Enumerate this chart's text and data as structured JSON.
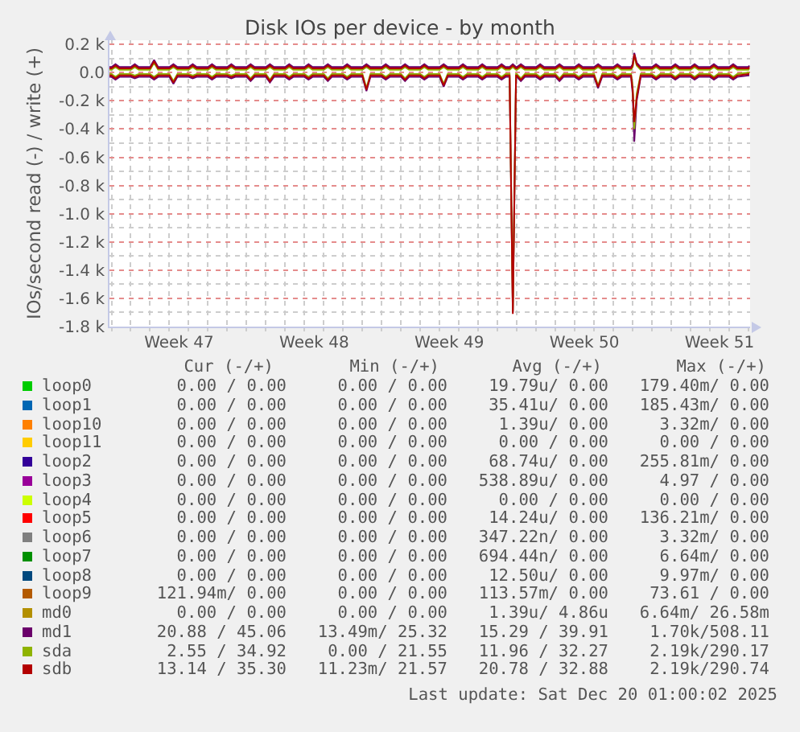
{
  "chart_data": {
    "type": "line",
    "title": "Disk IOs per device - by month",
    "ylabel": "IOs/second read (-) / write (+)",
    "xlim": [
      "2025-11-16T21:30",
      "2025-12-20T02:00"
    ],
    "xticks": [
      {
        "value": "2025-11-17",
        "label": null
      },
      {
        "value": "2025-11-20T12:00",
        "label": "Week 47"
      },
      {
        "value": "2025-11-24",
        "label": null
      },
      {
        "value": "2025-11-27T12:00",
        "label": "Week 48"
      },
      {
        "value": "2025-12-01",
        "label": null
      },
      {
        "value": "2025-12-04T12:00",
        "label": "Week 49"
      },
      {
        "value": "2025-12-08",
        "label": null
      },
      {
        "value": "2025-12-11T12:00",
        "label": "Week 50"
      },
      {
        "value": "2025-12-15",
        "label": null
      },
      {
        "value": "2025-12-18T12:00",
        "label": "Week 51"
      }
    ],
    "ylim": [
      -1800,
      230
    ],
    "yticks": [
      {
        "value": -1800,
        "label": "-1.8 k"
      },
      {
        "value": -1600,
        "label": "-1.6 k"
      },
      {
        "value": -1400,
        "label": "-1.4 k"
      },
      {
        "value": -1200,
        "label": "-1.2 k"
      },
      {
        "value": -1000,
        "label": "-1.0 k"
      },
      {
        "value": -800,
        "label": "-0.8 k"
      },
      {
        "value": -600,
        "label": "-0.6 k"
      },
      {
        "value": -400,
        "label": "-0.4 k"
      },
      {
        "value": -200,
        "label": "-0.2 k"
      },
      {
        "value": 0,
        "label": "0.0"
      },
      {
        "value": 200,
        "label": "0.2 k"
      }
    ],
    "grid": true,
    "legend": "bottom",
    "x": [
      "2025-11-16T21:30",
      "2025-11-17T00:00",
      "2025-11-17T05:00",
      "2025-11-17T10:00",
      "2025-11-18T00:00",
      "2025-11-18T05:00",
      "2025-11-18T10:00",
      "2025-11-19T00:00",
      "2025-11-19T05:00",
      "2025-11-19T10:00",
      "2025-11-20T00:00",
      "2025-11-20T05:00",
      "2025-11-20T10:00",
      "2025-11-21T00:00",
      "2025-11-21T05:00",
      "2025-11-21T10:00",
      "2025-11-22T00:00",
      "2025-11-22T05:00",
      "2025-11-22T10:00",
      "2025-11-23T00:00",
      "2025-11-23T05:00",
      "2025-11-23T10:00",
      "2025-11-24T00:00",
      "2025-11-24T05:00",
      "2025-11-24T10:00",
      "2025-11-25T00:00",
      "2025-11-25T05:00",
      "2025-11-25T10:00",
      "2025-11-26T00:00",
      "2025-11-26T05:00",
      "2025-11-26T10:00",
      "2025-11-27T00:00",
      "2025-11-27T05:00",
      "2025-11-27T10:00",
      "2025-11-28T00:00",
      "2025-11-28T05:00",
      "2025-11-28T10:00",
      "2025-11-29T00:00",
      "2025-11-29T05:00",
      "2025-11-29T10:00",
      "2025-11-30T00:00",
      "2025-11-30T05:00",
      "2025-11-30T10:00",
      "2025-12-01T00:00",
      "2025-12-01T05:00",
      "2025-12-01T10:00",
      "2025-12-02T00:00",
      "2025-12-02T05:00",
      "2025-12-02T10:00",
      "2025-12-03T00:00",
      "2025-12-03T05:00",
      "2025-12-03T10:00",
      "2025-12-04T00:00",
      "2025-12-04T05:00",
      "2025-12-04T10:00",
      "2025-12-05T00:00",
      "2025-12-05T05:00",
      "2025-12-05T10:00",
      "2025-12-06T00:00",
      "2025-12-06T05:00",
      "2025-12-06T10:00",
      "2025-12-07T00:00",
      "2025-12-07T05:00",
      "2025-12-07T10:00",
      "2025-12-07T15:00",
      "2025-12-07T19:00",
      "2025-12-07T23:00",
      "2025-12-08T00:00",
      "2025-12-08T05:00",
      "2025-12-08T10:00",
      "2025-12-09T00:00",
      "2025-12-09T05:00",
      "2025-12-09T10:00",
      "2025-12-10T00:00",
      "2025-12-10T05:00",
      "2025-12-10T10:00",
      "2025-12-11T00:00",
      "2025-12-11T05:00",
      "2025-12-11T10:00",
      "2025-12-12T00:00",
      "2025-12-12T05:00",
      "2025-12-12T10:00",
      "2025-12-13T00:00",
      "2025-12-13T05:00",
      "2025-12-13T10:00",
      "2025-12-13T22:00",
      "2025-12-14T00:00",
      "2025-12-14T02:00",
      "2025-12-14T05:00",
      "2025-12-14T10:00",
      "2025-12-15T00:00",
      "2025-12-15T05:00",
      "2025-12-15T10:00",
      "2025-12-16T00:00",
      "2025-12-16T05:00",
      "2025-12-16T10:00",
      "2025-12-17T00:00",
      "2025-12-17T05:00",
      "2025-12-17T10:00",
      "2025-12-18T00:00",
      "2025-12-18T05:00",
      "2025-12-18T10:00",
      "2025-12-19T00:00",
      "2025-12-19T05:00",
      "2025-12-19T10:00",
      "2025-12-20T00:00",
      "2025-12-20T01:00"
    ],
    "series": [
      {
        "name": "loop0",
        "color": "#00cc00",
        "values": [
          null,
          null,
          null,
          null,
          null,
          null,
          null,
          null,
          null,
          null,
          null,
          null,
          null,
          null,
          null,
          null,
          null,
          null,
          null,
          null,
          null,
          null,
          null,
          null,
          null,
          null,
          null,
          null,
          null,
          null,
          null,
          null,
          null,
          null,
          null,
          null,
          null,
          null,
          null,
          null,
          null,
          null,
          null,
          null,
          null,
          null,
          null,
          null,
          null,
          null,
          null,
          null,
          null,
          null,
          null,
          null,
          null,
          null,
          null,
          null,
          null,
          null,
          null,
          null,
          null,
          null,
          null,
          null,
          null,
          null,
          null,
          null,
          null,
          null,
          null,
          null,
          null,
          null,
          null,
          null,
          null,
          null,
          null,
          null,
          null,
          null,
          null,
          null,
          null,
          null,
          null,
          null,
          null,
          null,
          null,
          null,
          null,
          null,
          null,
          null,
          null,
          null,
          null,
          null,
          null,
          null,
          null
        ]
      },
      {
        "name": "loop1",
        "color": "#0066b3",
        "values": [
          null,
          null,
          null,
          null,
          null,
          null,
          null,
          null,
          null,
          null,
          null,
          null,
          null,
          null,
          null,
          null,
          null,
          null,
          null,
          null,
          null,
          null,
          null,
          null,
          null,
          null,
          null,
          null,
          null,
          null,
          null,
          null,
          null,
          null,
          null,
          null,
          null,
          null,
          null,
          null,
          null,
          null,
          null,
          null,
          null,
          null,
          null,
          null,
          null,
          null,
          null,
          null,
          null,
          null,
          null,
          null,
          null,
          null,
          null,
          null,
          null,
          null,
          null,
          null,
          null,
          null,
          null,
          null,
          null,
          null,
          null,
          null,
          null,
          null,
          null,
          null,
          null,
          null,
          null,
          null,
          null,
          null,
          null,
          null,
          null,
          null,
          null,
          null,
          null,
          null,
          null,
          null,
          null,
          null,
          null,
          null,
          null,
          null,
          null,
          null,
          null,
          null,
          null,
          null,
          null,
          null,
          null
        ]
      },
      {
        "name": "loop10",
        "color": "#ff8000",
        "values": [
          null,
          null,
          null,
          null,
          null,
          null,
          null,
          null,
          null,
          null,
          null,
          null,
          null,
          null,
          null,
          null,
          null,
          null,
          null,
          null,
          null,
          null,
          null,
          null,
          null,
          null,
          null,
          null,
          null,
          null,
          null,
          null,
          null,
          null,
          null,
          null,
          null,
          null,
          null,
          null,
          null,
          null,
          null,
          null,
          null,
          null,
          null,
          null,
          null,
          null,
          null,
          null,
          null,
          null,
          null,
          null,
          null,
          null,
          null,
          null,
          null,
          null,
          null,
          null,
          null,
          null,
          null,
          null,
          null,
          null,
          null,
          null,
          null,
          null,
          null,
          null,
          null,
          null,
          null,
          null,
          null,
          null,
          null,
          null,
          null,
          null,
          null,
          null,
          null,
          null,
          null,
          null,
          null,
          null,
          null,
          null,
          null,
          null,
          null,
          null,
          null,
          null,
          null,
          null,
          null,
          null,
          null
        ]
      },
      {
        "name": "loop11",
        "color": "#ffcc00",
        "values": [
          null,
          null,
          null,
          null,
          null,
          null,
          null,
          null,
          null,
          null,
          null,
          null,
          null,
          null,
          null,
          null,
          null,
          null,
          null,
          null,
          null,
          null,
          null,
          null,
          null,
          null,
          null,
          null,
          null,
          null,
          null,
          null,
          null,
          null,
          null,
          null,
          null,
          null,
          null,
          null,
          null,
          null,
          null,
          null,
          null,
          null,
          null,
          null,
          null,
          null,
          null,
          null,
          null,
          null,
          null,
          null,
          null,
          null,
          null,
          null,
          null,
          null,
          null,
          null,
          null,
          null,
          null,
          null,
          null,
          null,
          null,
          null,
          null,
          null,
          null,
          null,
          null,
          null,
          null,
          null,
          null,
          null,
          null,
          null,
          null,
          null,
          null,
          null,
          null,
          null,
          null,
          null,
          null,
          null,
          null,
          null,
          null,
          null,
          null,
          null,
          null,
          null,
          null,
          null,
          null,
          null,
          null
        ]
      },
      {
        "name": "loop2",
        "color": "#330099",
        "values": [
          null,
          null,
          null,
          null,
          null,
          null,
          null,
          null,
          null,
          null,
          null,
          null,
          null,
          null,
          null,
          null,
          null,
          null,
          null,
          null,
          null,
          null,
          null,
          null,
          null,
          null,
          null,
          null,
          null,
          null,
          null,
          null,
          null,
          null,
          null,
          null,
          null,
          null,
          null,
          null,
          null,
          null,
          null,
          null,
          null,
          null,
          null,
          null,
          null,
          null,
          null,
          null,
          null,
          null,
          null,
          null,
          null,
          null,
          null,
          null,
          null,
          null,
          null,
          null,
          null,
          null,
          null,
          null,
          null,
          null,
          null,
          null,
          null,
          null,
          null,
          null,
          null,
          null,
          null,
          null,
          null,
          null,
          null,
          null,
          null,
          null,
          null,
          null,
          null,
          null,
          null,
          null,
          null,
          null,
          null,
          null,
          null,
          null,
          null,
          null,
          null,
          null,
          null,
          null,
          null,
          null,
          null
        ]
      },
      {
        "name": "loop3",
        "color": "#990099",
        "values": [
          null,
          null,
          null,
          null,
          null,
          null,
          null,
          null,
          null,
          null,
          null,
          null,
          null,
          null,
          null,
          null,
          null,
          null,
          null,
          null,
          null,
          null,
          null,
          null,
          null,
          null,
          null,
          null,
          null,
          null,
          null,
          null,
          null,
          null,
          null,
          null,
          null,
          null,
          null,
          null,
          null,
          null,
          null,
          null,
          null,
          null,
          null,
          null,
          null,
          null,
          null,
          null,
          null,
          null,
          null,
          null,
          null,
          null,
          null,
          null,
          null,
          null,
          null,
          null,
          null,
          null,
          null,
          null,
          null,
          null,
          null,
          null,
          null,
          null,
          null,
          null,
          null,
          null,
          null,
          null,
          null,
          null,
          null,
          null,
          null,
          null,
          null,
          null,
          null,
          null,
          null,
          null,
          null,
          null,
          null,
          null,
          null,
          null,
          null,
          null,
          null,
          null,
          null,
          null,
          null,
          null,
          null
        ]
      },
      {
        "name": "loop4",
        "color": "#ccff00",
        "values": [
          null,
          null,
          null,
          null,
          null,
          null,
          null,
          null,
          null,
          null,
          null,
          null,
          null,
          null,
          null,
          null,
          null,
          null,
          null,
          null,
          null,
          null,
          null,
          null,
          null,
          null,
          null,
          null,
          null,
          null,
          null,
          null,
          null,
          null,
          null,
          null,
          null,
          null,
          null,
          null,
          null,
          null,
          null,
          null,
          null,
          null,
          null,
          null,
          null,
          null,
          null,
          null,
          null,
          null,
          null,
          null,
          null,
          null,
          null,
          null,
          null,
          null,
          null,
          null,
          null,
          null,
          null,
          null,
          null,
          null,
          null,
          null,
          null,
          null,
          null,
          null,
          null,
          null,
          null,
          null,
          null,
          null,
          null,
          null,
          null,
          null,
          null,
          null,
          null,
          null,
          null,
          null,
          null,
          null,
          null,
          null,
          null,
          null,
          null,
          null,
          null,
          null,
          null,
          null,
          null,
          null,
          null
        ]
      },
      {
        "name": "loop5",
        "color": "#ff0000",
        "values": [
          null,
          null,
          null,
          null,
          null,
          null,
          null,
          null,
          null,
          null,
          null,
          null,
          null,
          null,
          null,
          null,
          null,
          null,
          null,
          null,
          null,
          null,
          null,
          null,
          null,
          null,
          null,
          null,
          null,
          null,
          null,
          null,
          null,
          null,
          null,
          null,
          null,
          null,
          null,
          null,
          null,
          null,
          null,
          null,
          null,
          null,
          null,
          null,
          null,
          null,
          null,
          null,
          null,
          null,
          null,
          null,
          null,
          null,
          null,
          null,
          null,
          null,
          null,
          null,
          null,
          null,
          null,
          null,
          null,
          null,
          null,
          null,
          null,
          null,
          null,
          null,
          null,
          null,
          null,
          null,
          null,
          null,
          null,
          null,
          null,
          null,
          null,
          null,
          null,
          null,
          null,
          null,
          null,
          null,
          null,
          null,
          null,
          null,
          null,
          null,
          null,
          null,
          null,
          null,
          null,
          null,
          null
        ]
      },
      {
        "name": "loop6",
        "color": "#808080",
        "values": [
          null,
          null,
          null,
          null,
          null,
          null,
          null,
          null,
          null,
          null,
          null,
          null,
          null,
          null,
          null,
          null,
          null,
          null,
          null,
          null,
          null,
          null,
          null,
          null,
          null,
          null,
          null,
          null,
          null,
          null,
          null,
          null,
          null,
          null,
          null,
          null,
          null,
          null,
          null,
          null,
          null,
          null,
          null,
          null,
          null,
          null,
          null,
          null,
          null,
          null,
          null,
          null,
          null,
          null,
          null,
          null,
          null,
          null,
          null,
          null,
          null,
          null,
          null,
          null,
          null,
          null,
          null,
          null,
          null,
          null,
          null,
          null,
          null,
          null,
          null,
          null,
          null,
          null,
          null,
          null,
          null,
          null,
          null,
          null,
          null,
          null,
          null,
          null,
          null,
          null,
          null,
          null,
          null,
          null,
          null,
          null,
          null,
          null,
          null,
          null,
          null,
          null,
          null,
          null,
          null,
          null,
          null
        ]
      },
      {
        "name": "loop7",
        "color": "#008f00",
        "values": [
          null,
          null,
          null,
          null,
          null,
          null,
          null,
          null,
          null,
          null,
          null,
          null,
          null,
          null,
          null,
          null,
          null,
          null,
          null,
          null,
          null,
          null,
          null,
          null,
          null,
          null,
          null,
          null,
          null,
          null,
          null,
          null,
          null,
          null,
          null,
          null,
          null,
          null,
          null,
          null,
          null,
          null,
          null,
          null,
          null,
          null,
          null,
          null,
          null,
          null,
          null,
          null,
          null,
          null,
          null,
          null,
          null,
          null,
          null,
          null,
          null,
          null,
          null,
          null,
          null,
          null,
          null,
          null,
          null,
          null,
          null,
          null,
          null,
          null,
          null,
          null,
          null,
          null,
          null,
          null,
          null,
          null,
          null,
          null,
          null,
          null,
          null,
          null,
          null,
          null,
          null,
          null,
          null,
          null,
          null,
          null,
          null,
          null,
          null,
          null,
          null,
          null,
          null,
          null,
          null,
          null,
          null
        ]
      },
      {
        "name": "loop8",
        "color": "#00487d",
        "values": [
          null,
          null,
          null,
          null,
          null,
          null,
          null,
          null,
          null,
          null,
          null,
          null,
          null,
          null,
          null,
          null,
          null,
          null,
          null,
          null,
          null,
          null,
          null,
          null,
          null,
          null,
          null,
          null,
          null,
          null,
          null,
          null,
          null,
          null,
          null,
          null,
          null,
          null,
          null,
          null,
          null,
          null,
          null,
          null,
          null,
          null,
          null,
          null,
          null,
          null,
          null,
          null,
          null,
          null,
          null,
          null,
          null,
          null,
          null,
          null,
          null,
          null,
          null,
          null,
          null,
          null,
          null,
          null,
          null,
          null,
          null,
          null,
          null,
          null,
          null,
          null,
          null,
          null,
          null,
          null,
          null,
          null,
          null,
          null,
          null,
          null,
          null,
          null,
          null,
          null,
          null,
          null,
          null,
          null,
          null,
          null,
          null,
          null,
          null,
          null,
          null,
          null,
          null,
          null,
          null,
          null,
          null
        ]
      },
      {
        "name": "loop9",
        "color": "#b35a00",
        "values": [
          null,
          null,
          null,
          null,
          null,
          null,
          null,
          null,
          null,
          null,
          null,
          null,
          null,
          null,
          null,
          null,
          null,
          null,
          null,
          null,
          null,
          null,
          null,
          null,
          null,
          null,
          null,
          null,
          null,
          null,
          null,
          null,
          null,
          null,
          null,
          null,
          null,
          null,
          null,
          null,
          null,
          null,
          null,
          null,
          null,
          null,
          null,
          null,
          null,
          null,
          null,
          null,
          null,
          null,
          null,
          null,
          null,
          null,
          null,
          null,
          null,
          null,
          null,
          null,
          null,
          null,
          null,
          null,
          null,
          null,
          null,
          null,
          null,
          null,
          null,
          null,
          null,
          null,
          null,
          null,
          null,
          null,
          null,
          null,
          null,
          null,
          null,
          null,
          null,
          null,
          null,
          null,
          null,
          null,
          null,
          null,
          null,
          null,
          null,
          null,
          null,
          null,
          null,
          null,
          null,
          null,
          null
        ]
      },
      {
        "name": "md0",
        "color": "#b38f00",
        "values": [
          null,
          null,
          null,
          null,
          null,
          null,
          null,
          null,
          null,
          null,
          null,
          null,
          null,
          null,
          null,
          null,
          null,
          null,
          null,
          null,
          null,
          null,
          null,
          null,
          null,
          null,
          null,
          null,
          null,
          null,
          null,
          null,
          null,
          null,
          null,
          null,
          null,
          null,
          null,
          null,
          null,
          null,
          null,
          null,
          null,
          null,
          null,
          null,
          null,
          null,
          null,
          null,
          null,
          null,
          null,
          null,
          null,
          null,
          null,
          null,
          null,
          null,
          null,
          null,
          null,
          null,
          null,
          null,
          null,
          null,
          null,
          null,
          null,
          null,
          null,
          null,
          null,
          null,
          null,
          null,
          null,
          null,
          null,
          null,
          null,
          null,
          null,
          null,
          null,
          null,
          null,
          null,
          null,
          null,
          null,
          null,
          null,
          null,
          null,
          null,
          null,
          null,
          null,
          null,
          null,
          null,
          null
        ]
      },
      {
        "name": "md1",
        "color": "#6b006b",
        "values": [
          40,
          40,
          60,
          40,
          40,
          60,
          40,
          40,
          90,
          40,
          40,
          60,
          40,
          40,
          60,
          40,
          40,
          60,
          40,
          40,
          60,
          40,
          40,
          60,
          40,
          40,
          60,
          40,
          40,
          60,
          40,
          40,
          60,
          40,
          40,
          60,
          40,
          40,
          60,
          40,
          40,
          60,
          40,
          40,
          60,
          40,
          40,
          60,
          40,
          40,
          60,
          40,
          40,
          60,
          40,
          40,
          60,
          40,
          40,
          60,
          40,
          40,
          60,
          40,
          40,
          60,
          40,
          40,
          60,
          40,
          40,
          60,
          40,
          40,
          60,
          40,
          40,
          60,
          40,
          40,
          60,
          40,
          40,
          60,
          40,
          40,
          60,
          140,
          70,
          40,
          40,
          60,
          40,
          40,
          60,
          40,
          40,
          60,
          40,
          40,
          60,
          40,
          40,
          60,
          40,
          40,
          50
        ]
      },
      {
        "color": "#6b006b",
        "values": [
          -30,
          -30,
          -50,
          -30,
          -30,
          -40,
          -30,
          -30,
          -50,
          -30,
          -30,
          -80,
          -30,
          -30,
          -40,
          -30,
          -30,
          -50,
          -30,
          -30,
          -40,
          -30,
          -30,
          -60,
          -30,
          -30,
          -70,
          -30,
          -30,
          -50,
          -30,
          -30,
          -50,
          -30,
          -30,
          -60,
          -30,
          -30,
          -50,
          -30,
          -30,
          -130,
          -30,
          -30,
          -50,
          -30,
          -30,
          -60,
          -30,
          -30,
          -50,
          -30,
          -30,
          -100,
          -30,
          -30,
          -50,
          -30,
          -30,
          -50,
          -30,
          -30,
          -50,
          -30,
          -30,
          -1700,
          -30,
          -30,
          -60,
          -30,
          -30,
          -50,
          -30,
          -30,
          -60,
          -30,
          -30,
          -50,
          -30,
          -30,
          -110,
          -30,
          -30,
          -50,
          -30,
          -30,
          -150,
          -490,
          -200,
          -30,
          -30,
          -50,
          -30,
          -30,
          -50,
          -30,
          -30,
          -50,
          -30,
          -30,
          -50,
          -30,
          -30,
          -50,
          -30,
          -20,
          -20
        ]
      },
      {
        "name": "sda",
        "color": "#8fb300",
        "values": [
          20,
          20,
          40,
          20,
          20,
          40,
          20,
          20,
          70,
          20,
          20,
          40,
          20,
          20,
          40,
          20,
          20,
          40,
          20,
          20,
          40,
          20,
          20,
          40,
          20,
          20,
          40,
          20,
          20,
          40,
          20,
          20,
          40,
          20,
          20,
          40,
          20,
          20,
          40,
          20,
          20,
          40,
          20,
          20,
          40,
          20,
          20,
          40,
          20,
          20,
          40,
          20,
          20,
          40,
          20,
          20,
          40,
          20,
          20,
          40,
          20,
          20,
          40,
          20,
          20,
          40,
          20,
          20,
          40,
          20,
          20,
          40,
          20,
          20,
          40,
          20,
          20,
          40,
          20,
          20,
          40,
          20,
          20,
          40,
          20,
          20,
          40,
          120,
          50,
          20,
          20,
          40,
          20,
          20,
          40,
          20,
          20,
          40,
          20,
          20,
          40,
          20,
          20,
          40,
          20,
          20,
          30
        ]
      },
      {
        "color": "#8fb300",
        "values": [
          -10,
          -10,
          -30,
          -10,
          -10,
          -20,
          -10,
          -10,
          -30,
          -10,
          -10,
          -60,
          -10,
          -10,
          -20,
          -10,
          -10,
          -30,
          -10,
          -10,
          -20,
          -10,
          -10,
          -40,
          -10,
          -10,
          -50,
          -10,
          -10,
          -30,
          -10,
          -10,
          -30,
          -10,
          -10,
          -40,
          -10,
          -10,
          -30,
          -10,
          -10,
          -110,
          -10,
          -10,
          -30,
          -10,
          -10,
          -40,
          -10,
          -10,
          -30,
          -10,
          -10,
          -80,
          -10,
          -10,
          -30,
          -10,
          -10,
          -30,
          -10,
          -10,
          -30,
          -10,
          -10,
          -1690,
          -10,
          -10,
          -40,
          -10,
          -10,
          -30,
          -10,
          -10,
          -40,
          -10,
          -10,
          -30,
          -10,
          -10,
          -90,
          -10,
          -10,
          -30,
          -10,
          -10,
          -100,
          -400,
          -150,
          -10,
          -10,
          -30,
          -10,
          -10,
          -30,
          -10,
          -10,
          -30,
          -10,
          -10,
          -30,
          -10,
          -10,
          -30,
          -10,
          0,
          0
        ]
      },
      {
        "name": "sdb",
        "color": "#b30000",
        "values": [
          30,
          30,
          50,
          30,
          30,
          50,
          30,
          30,
          80,
          30,
          30,
          50,
          30,
          30,
          50,
          30,
          30,
          50,
          30,
          30,
          50,
          30,
          30,
          50,
          30,
          30,
          50,
          30,
          30,
          50,
          30,
          30,
          50,
          30,
          30,
          50,
          30,
          30,
          50,
          30,
          30,
          50,
          30,
          30,
          50,
          30,
          30,
          50,
          30,
          30,
          50,
          30,
          30,
          50,
          30,
          30,
          50,
          30,
          30,
          50,
          30,
          30,
          50,
          30,
          30,
          50,
          30,
          30,
          50,
          30,
          30,
          50,
          30,
          30,
          50,
          30,
          30,
          50,
          30,
          30,
          50,
          30,
          30,
          50,
          30,
          30,
          50,
          130,
          60,
          30,
          30,
          50,
          30,
          30,
          50,
          30,
          30,
          50,
          30,
          30,
          50,
          30,
          30,
          50,
          30,
          30,
          40
        ]
      },
      {
        "color": "#b30000",
        "values": [
          -20,
          -20,
          -40,
          -20,
          -20,
          -30,
          -20,
          -20,
          -40,
          -20,
          -20,
          -70,
          -20,
          -20,
          -30,
          -20,
          -20,
          -40,
          -20,
          -20,
          -30,
          -20,
          -20,
          -50,
          -20,
          -20,
          -60,
          -20,
          -20,
          -40,
          -20,
          -20,
          -40,
          -20,
          -20,
          -50,
          -20,
          -20,
          -40,
          -20,
          -20,
          -120,
          -20,
          -20,
          -40,
          -20,
          -20,
          -50,
          -20,
          -20,
          -40,
          -20,
          -20,
          -90,
          -20,
          -20,
          -40,
          -20,
          -20,
          -40,
          -20,
          -20,
          -40,
          -20,
          -20,
          -1710,
          -20,
          -20,
          -50,
          -20,
          -20,
          -40,
          -20,
          -20,
          -50,
          -20,
          -20,
          -40,
          -20,
          -20,
          -100,
          -20,
          -20,
          -40,
          -20,
          -20,
          -120,
          -350,
          -180,
          -20,
          -20,
          -40,
          -20,
          -20,
          -40,
          -20,
          -20,
          -40,
          -20,
          -20,
          -40,
          -20,
          -20,
          -40,
          -20,
          -10,
          -10
        ]
      }
    ],
    "annotations": [
      "Cur (-/+)",
      "Min (-/+)",
      "Avg (-/+)",
      "Max (-/+)",
      "0.00 / 0.00",
      "0.00 / 0.00",
      "19.79u/ 0.00",
      "179.40m/ 0.00",
      "0.00 / 0.00",
      "0.00 / 0.00",
      "35.41u/ 0.00",
      "185.43m/ 0.00",
      "0.00 / 0.00",
      "0.00 / 0.00",
      "1.39u/ 0.00",
      "3.32m/ 0.00",
      "0.00 / 0.00",
      "0.00 / 0.00",
      "0.00 / 0.00",
      "0.00 / 0.00",
      "0.00 / 0.00",
      "0.00 / 0.00",
      "68.74u/ 0.00",
      "255.81m/ 0.00",
      "0.00 / 0.00",
      "0.00 / 0.00",
      "538.89u/ 0.00",
      "4.97 / 0.00",
      "0.00 / 0.00",
      "0.00 / 0.00",
      "0.00 / 0.00",
      "0.00 / 0.00",
      "0.00 / 0.00",
      "0.00 / 0.00",
      "14.24u/ 0.00",
      "136.21m/ 0.00",
      "0.00 / 0.00",
      "0.00 / 0.00",
      "347.22n/ 0.00",
      "3.32m/ 0.00",
      "0.00 / 0.00",
      "0.00 / 0.00",
      "694.44n/ 0.00",
      "6.64m/ 0.00",
      "0.00 / 0.00",
      "0.00 / 0.00",
      "12.50u/ 0.00",
      "9.97m/ 0.00",
      "121.94m/ 0.00",
      "0.00 / 0.00",
      "113.57m/ 0.00",
      "73.61 / 0.00",
      "0.00 / 0.00",
      "0.00 / 0.00",
      "1.39u/ 4.86u",
      "6.64m/ 26.58m",
      "20.88 / 45.06",
      "13.49m/ 25.32",
      "15.29 / 39.91",
      "1.70k/508.11",
      "2.55 / 34.92",
      "0.00 / 21.55",
      "11.96 / 32.27",
      "2.19k/290.17",
      "13.14 / 35.30",
      "11.23m/ 21.57",
      "20.78 / 32.88",
      "2.19k/290.74",
      "Last update: Sat Dec 20 01:00:02 2025"
    ]
  }
}
